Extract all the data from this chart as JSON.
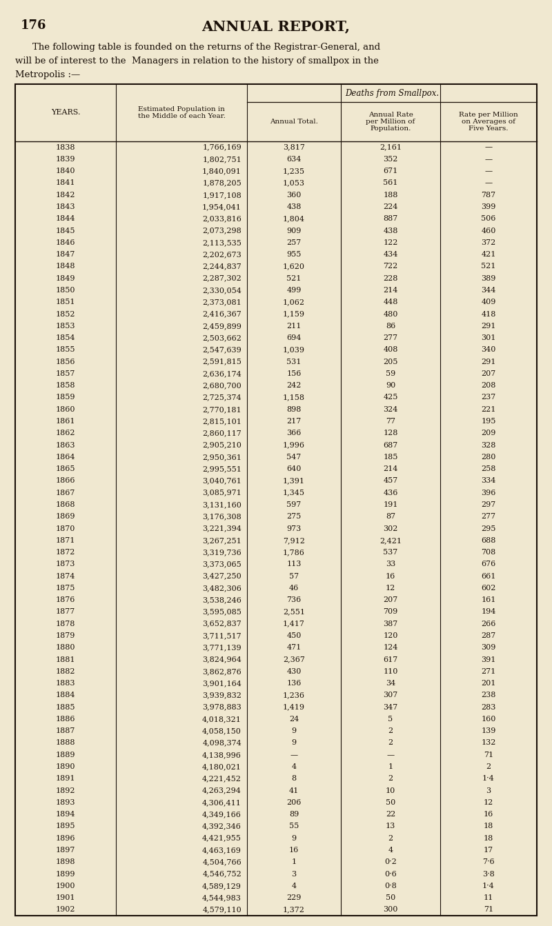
{
  "page_number": "176",
  "page_title": "ANNUAL REPORT,",
  "intro_line1": "    The following table is founded on the returns of the Registrar-General, and",
  "intro_line2": "will be of interest to the  Managers in relation to the history of smallpox in the",
  "intro_line3": "Metropolis :—",
  "table_header_main": "Deaths from Smallpox.",
  "col_headers_row1": [
    "",
    "",
    "Annual Total.",
    "Annual Rate\nper Million of\nPopulation.",
    "Rate per Million\non Averages of\nFive Years."
  ],
  "col_headers_row0": [
    "YEARS.",
    "Estimated Population in\nthe Middle of each Year.",
    "",
    "",
    ""
  ],
  "rows": [
    [
      "1838",
      "1,766,169",
      "3,817",
      "2,161",
      "—"
    ],
    [
      "1839",
      "1,802,751",
      "634",
      "352",
      "—"
    ],
    [
      "1840",
      "1,840,091",
      "1,235",
      "671",
      "—"
    ],
    [
      "1841",
      "1,878,205",
      "1,053",
      "561",
      "—"
    ],
    [
      "1842",
      "1,917,108",
      "360",
      "188",
      "787"
    ],
    [
      "1843",
      "1,954,041",
      "438",
      "224",
      "399"
    ],
    [
      "1844",
      "2,033,816",
      "1,804",
      "887",
      "506"
    ],
    [
      "1845",
      "2,073,298",
      "909",
      "438",
      "460"
    ],
    [
      "1846",
      "2,113,535",
      "257",
      "122",
      "372"
    ],
    [
      "1847",
      "2,202,673",
      "955",
      "434",
      "421"
    ],
    [
      "1848",
      "2,244,837",
      "1,620",
      "722",
      "521"
    ],
    [
      "1849",
      "2,287,302",
      "521",
      "228",
      "389"
    ],
    [
      "1850",
      "2,330,054",
      "499",
      "214",
      "344"
    ],
    [
      "1851",
      "2,373,081",
      "1,062",
      "448",
      "409"
    ],
    [
      "1852",
      "2,416,367",
      "1,159",
      "480",
      "418"
    ],
    [
      "1853",
      "2,459,899",
      "211",
      "86",
      "291"
    ],
    [
      "1854",
      "2,503,662",
      "694",
      "277",
      "301"
    ],
    [
      "1855",
      "2,547,639",
      "1,039",
      "408",
      "340"
    ],
    [
      "1856",
      "2,591,815",
      "531",
      "205",
      "291"
    ],
    [
      "1857",
      "2,636,174",
      "156",
      "59",
      "207"
    ],
    [
      "1858",
      "2,680,700",
      "242",
      "90",
      "208"
    ],
    [
      "1859",
      "2,725,374",
      "1,158",
      "425",
      "237"
    ],
    [
      "1860",
      "2,770,181",
      "898",
      "324",
      "221"
    ],
    [
      "1861",
      "2,815,101",
      "217",
      "77",
      "195"
    ],
    [
      "1862",
      "2,860,117",
      "366",
      "128",
      "209"
    ],
    [
      "1863",
      "2,905,210",
      "1,996",
      "687",
      "328"
    ],
    [
      "1864",
      "2,950,361",
      "547",
      "185",
      "280"
    ],
    [
      "1865",
      "2,995,551",
      "640",
      "214",
      "258"
    ],
    [
      "1866",
      "3,040,761",
      "1,391",
      "457",
      "334"
    ],
    [
      "1867",
      "3,085,971",
      "1,345",
      "436",
      "396"
    ],
    [
      "1868",
      "3,131,160",
      "597",
      "191",
      "297"
    ],
    [
      "1869",
      "3,176,308",
      "275",
      "87",
      "277"
    ],
    [
      "1870",
      "3,221,394",
      "973",
      "302",
      "295"
    ],
    [
      "1871",
      "3,267,251",
      "7,912",
      "2,421",
      "688"
    ],
    [
      "1872",
      "3,319,736",
      "1,786",
      "537",
      "708"
    ],
    [
      "1873",
      "3,373,065",
      "113",
      "33",
      "676"
    ],
    [
      "1874",
      "3,427,250",
      "57",
      "16",
      "661"
    ],
    [
      "1875",
      "3,482,306",
      "46",
      "12",
      "602"
    ],
    [
      "1876",
      "3,538,246",
      "736",
      "207",
      "161"
    ],
    [
      "1877",
      "3,595,085",
      "2,551",
      "709",
      "194"
    ],
    [
      "1878",
      "3,652,837",
      "1,417",
      "387",
      "266"
    ],
    [
      "1879",
      "3,711,517",
      "450",
      "120",
      "287"
    ],
    [
      "1880",
      "3,771,139",
      "471",
      "124",
      "309"
    ],
    [
      "1881",
      "3,824,964",
      "2,367",
      "617",
      "391"
    ],
    [
      "1882",
      "3,862,876",
      "430",
      "110",
      "271"
    ],
    [
      "1883",
      "3,901,164",
      "136",
      "34",
      "201"
    ],
    [
      "1884",
      "3,939,832",
      "1,236",
      "307",
      "238"
    ],
    [
      "1885",
      "3,978,883",
      "1,419",
      "347",
      "283"
    ],
    [
      "1886",
      "4,018,321",
      "24",
      "5",
      "160"
    ],
    [
      "1887",
      "4,058,150",
      "9",
      "2",
      "139"
    ],
    [
      "1888",
      "4,098,374",
      "9",
      "2",
      "132"
    ],
    [
      "1889",
      "4,138,996",
      "—",
      "—",
      "71"
    ],
    [
      "1890",
      "4,180,021",
      "4",
      "1",
      "2"
    ],
    [
      "1891",
      "4,221,452",
      "8",
      "2",
      "1·4"
    ],
    [
      "1892",
      "4,263,294",
      "41",
      "10",
      "3"
    ],
    [
      "1893",
      "4,306,411",
      "206",
      "50",
      "12"
    ],
    [
      "1894",
      "4,349,166",
      "89",
      "22",
      "16"
    ],
    [
      "1895",
      "4,392,346",
      "55",
      "13",
      "18"
    ],
    [
      "1896",
      "4,421,955",
      "9",
      "2",
      "18"
    ],
    [
      "1897",
      "4,463,169",
      "16",
      "4",
      "17"
    ],
    [
      "1898",
      "4,504,766",
      "1",
      "0·2",
      "7·6"
    ],
    [
      "1899",
      "4,546,752",
      "3",
      "0·6",
      "3·8"
    ],
    [
      "1900",
      "4,589,129",
      "4",
      "0·8",
      "1·4"
    ],
    [
      "1901",
      "4,544,983",
      "229",
      "50",
      "11"
    ],
    [
      "1902",
      "4,579,110",
      "1,372",
      "300",
      "71"
    ]
  ],
  "bg_color": "#f0e8d0",
  "text_color": "#1a1008",
  "line_color": "#1a1008",
  "fig_width": 8.0,
  "fig_height": 13.43,
  "dpi": 100
}
